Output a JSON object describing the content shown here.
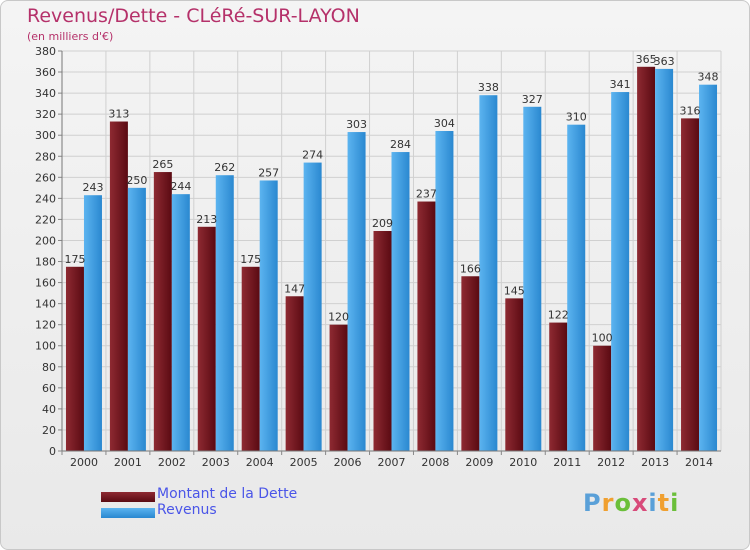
{
  "title": "Revenus/Dette - CLéRé-SUR-LAYON",
  "subtitle": "(en milliers d'€)",
  "logo": "Proxiti",
  "colors": {
    "dette": "#6b0f1a",
    "revenus": "#3a9ae0",
    "grid": "#d0d0d0",
    "title": "#b5316a",
    "legend_text": "#4a55e8"
  },
  "chart_data": {
    "type": "bar",
    "categories": [
      "2000",
      "2001",
      "2002",
      "2003",
      "2004",
      "2005",
      "2006",
      "2007",
      "2008",
      "2009",
      "2010",
      "2011",
      "2012",
      "2013",
      "2014"
    ],
    "series": [
      {
        "name": "Montant de la Dette",
        "values": [
          175,
          313,
          265,
          213,
          175,
          147,
          120,
          209,
          237,
          166,
          145,
          122,
          100,
          365,
          316
        ]
      },
      {
        "name": "Revenus",
        "values": [
          243,
          250,
          244,
          262,
          257,
          274,
          303,
          284,
          304,
          338,
          327,
          310,
          341,
          363,
          348
        ]
      }
    ],
    "ylim": [
      0,
      380
    ],
    "yticks": [
      0,
      20,
      40,
      60,
      80,
      100,
      120,
      140,
      160,
      180,
      200,
      220,
      240,
      260,
      280,
      300,
      320,
      340,
      360,
      380
    ],
    "grid": true,
    "legend": "bottom-left"
  }
}
